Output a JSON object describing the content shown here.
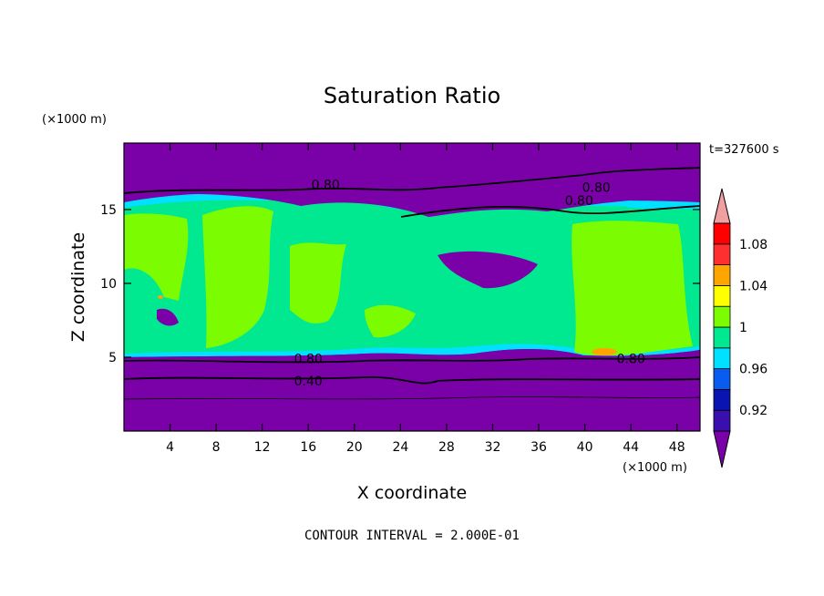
{
  "chart_data": {
    "type": "heatmap",
    "title": "Saturation Ratio",
    "xlabel": "X coordinate",
    "ylabel": "Z coordinate",
    "x_unit": "(×1000 m)",
    "y_unit": "(×1000 m)",
    "time_label": "t=327600 s",
    "footer": "CONTOUR INTERVAL = 2.000E-01",
    "xlim": [
      0,
      50
    ],
    "ylim": [
      0,
      19.5
    ],
    "x_ticks": [
      4,
      8,
      12,
      16,
      20,
      24,
      28,
      32,
      36,
      40,
      44,
      48
    ],
    "x_tick_labels": [
      "4",
      "8",
      "12",
      "16",
      "20",
      "24",
      "28",
      "32",
      "36",
      "40",
      "44",
      "48"
    ],
    "y_ticks": [
      5,
      10,
      15
    ],
    "y_tick_labels": [
      "5",
      "10",
      "15"
    ],
    "contour_labels": [
      {
        "text": "0.80",
        "x": 17.5,
        "z": 16.7
      },
      {
        "text": "0.80",
        "x": 41.0,
        "z": 16.5
      },
      {
        "text": "0.80",
        "x": 39.5,
        "z": 15.6
      },
      {
        "text": "0.80",
        "x": 16.0,
        "z": 4.9
      },
      {
        "text": "0.80",
        "x": 44.0,
        "z": 4.9
      },
      {
        "text": "0.40",
        "x": 16.0,
        "z": 3.4
      }
    ],
    "colorbar": {
      "levels": [
        0.9,
        0.92,
        0.94,
        0.96,
        0.98,
        1.0,
        1.02,
        1.04,
        1.06,
        1.08,
        1.1
      ],
      "colors": [
        "#7a00a8",
        "#3b0fae",
        "#0a14b0",
        "#0a5cf0",
        "#00e0ff",
        "#00e890",
        "#7cfc00",
        "#ffff00",
        "#ffa500",
        "#ff3030",
        "#ff0000",
        "#f0a0a0"
      ],
      "tick_labels": [
        "0.92",
        "0.96",
        "1",
        "1.04",
        "1.08"
      ],
      "tick_values": [
        0.92,
        0.96,
        1.0,
        1.04,
        1.08
      ]
    }
  }
}
